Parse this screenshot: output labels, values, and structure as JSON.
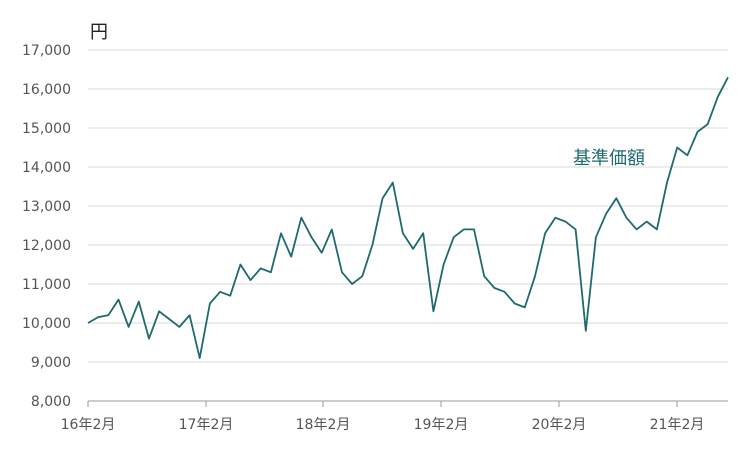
{
  "chart_data": {
    "type": "line",
    "unit_label": "円",
    "series": [
      {
        "name": "基準価額",
        "color": "#1e6a6e",
        "points": [
          [
            "2016-02",
            10000
          ],
          [
            "2016-03",
            10150
          ],
          [
            "2016-04",
            10200
          ],
          [
            "2016-05",
            10600
          ],
          [
            "2016-06",
            9900
          ],
          [
            "2016-07",
            10550
          ],
          [
            "2016-08",
            9600
          ],
          [
            "2016-09",
            10300
          ],
          [
            "2016-10",
            10100
          ],
          [
            "2016-11",
            9900
          ],
          [
            "2016-12",
            10200
          ],
          [
            "2017-01",
            9100
          ],
          [
            "2017-02",
            10500
          ],
          [
            "2017-03",
            10800
          ],
          [
            "2017-04",
            10700
          ],
          [
            "2017-05",
            11500
          ],
          [
            "2017-06",
            11100
          ],
          [
            "2017-07",
            11400
          ],
          [
            "2017-08",
            11300
          ],
          [
            "2017-09",
            12300
          ],
          [
            "2017-10",
            11700
          ],
          [
            "2017-11",
            12700
          ],
          [
            "2017-12",
            12200
          ],
          [
            "2018-01",
            11800
          ],
          [
            "2018-02",
            12400
          ],
          [
            "2018-03",
            11300
          ],
          [
            "2018-04",
            11000
          ],
          [
            "2018-05",
            11200
          ],
          [
            "2018-06",
            12000
          ],
          [
            "2018-07",
            13200
          ],
          [
            "2018-08",
            13600
          ],
          [
            "2018-09",
            12300
          ],
          [
            "2018-10",
            11900
          ],
          [
            "2018-11",
            12300
          ],
          [
            "2018-12",
            10300
          ],
          [
            "2019-01",
            11500
          ],
          [
            "2019-02",
            12200
          ],
          [
            "2019-03",
            12400
          ],
          [
            "2019-04",
            12400
          ],
          [
            "2019-05",
            11200
          ],
          [
            "2019-06",
            10900
          ],
          [
            "2019-07",
            10800
          ],
          [
            "2019-08",
            10500
          ],
          [
            "2019-09",
            10400
          ],
          [
            "2019-10",
            11200
          ],
          [
            "2019-11",
            12300
          ],
          [
            "2019-12",
            12700
          ],
          [
            "2020-01",
            12600
          ],
          [
            "2020-02",
            12400
          ],
          [
            "2020-03",
            9800
          ],
          [
            "2020-04",
            12200
          ],
          [
            "2020-05",
            12800
          ],
          [
            "2020-06",
            13200
          ],
          [
            "2020-07",
            12700
          ],
          [
            "2020-08",
            12400
          ],
          [
            "2020-09",
            12600
          ],
          [
            "2020-10",
            12400
          ],
          [
            "2020-11",
            13600
          ],
          [
            "2020-12",
            14500
          ],
          [
            "2021-01",
            14300
          ],
          [
            "2021-02",
            14900
          ],
          [
            "2021-03",
            15100
          ],
          [
            "2021-04",
            15800
          ],
          [
            "2021-05",
            16300
          ]
        ]
      }
    ],
    "y_ticks": [
      "8,000",
      "9,000",
      "10,000",
      "11,000",
      "12,000",
      "13,000",
      "14,000",
      "15,000",
      "16,000",
      "17,000"
    ],
    "x_ticks": [
      "16年2月",
      "17年2月",
      "18年2月",
      "19年2月",
      "20年2月",
      "21年2月"
    ],
    "ylim": [
      8000,
      17000
    ],
    "xlim": [
      "2016-02",
      "2021-05"
    ],
    "grid": true,
    "legend": "none"
  }
}
